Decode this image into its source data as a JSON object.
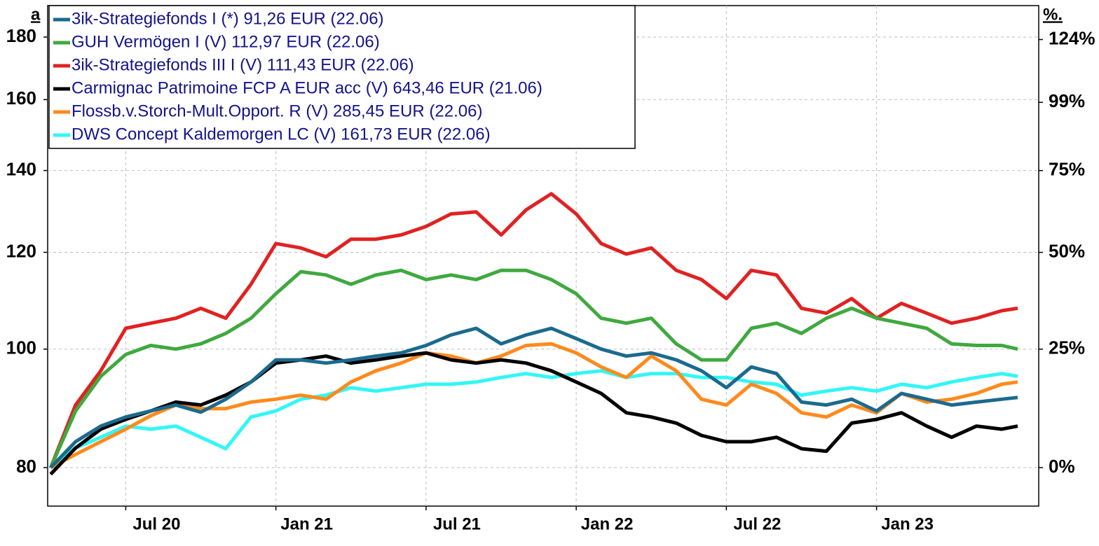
{
  "chart_data": {
    "type": "line",
    "left_corner_label": "a",
    "right_corner_label": "%.",
    "x": [
      2020.25,
      2020.333,
      2020.417,
      2020.5,
      2020.583,
      2020.667,
      2020.75,
      2020.833,
      2020.917,
      2021.0,
      2021.083,
      2021.167,
      2021.25,
      2021.333,
      2021.417,
      2021.5,
      2021.583,
      2021.667,
      2021.75,
      2021.833,
      2021.917,
      2022.0,
      2022.083,
      2022.167,
      2022.25,
      2022.333,
      2022.417,
      2022.5,
      2022.583,
      2022.667,
      2022.75,
      2022.833,
      2022.917,
      2023.0,
      2023.083,
      2023.167,
      2023.25,
      2023.333,
      2023.417,
      2023.47
    ],
    "xlim": [
      2020.24,
      2023.54
    ],
    "xticks": [
      {
        "value": 2020.5,
        "label": "Jul 20"
      },
      {
        "value": 2021.0,
        "label": "Jan 21"
      },
      {
        "value": 2021.5,
        "label": "Jul 21"
      },
      {
        "value": 2022.0,
        "label": "Jan 22"
      },
      {
        "value": 2022.5,
        "label": "Jul 22"
      },
      {
        "value": 2023.0,
        "label": "Jan 23"
      }
    ],
    "ylim": [
      74.4,
      191
    ],
    "yticks": [
      80,
      100,
      120,
      140,
      160,
      180
    ],
    "y_scale": "log",
    "y2lim": [
      -7,
      138.8
    ],
    "y2_scale": "log",
    "y2ticks": [
      {
        "value": 0,
        "label": "0%"
      },
      {
        "value": 25,
        "label": "25%"
      },
      {
        "value": 50,
        "label": "50%"
      },
      {
        "value": 75,
        "label": "75%"
      },
      {
        "value": 99,
        "label": "99%"
      },
      {
        "value": 124,
        "label": "124%"
      }
    ],
    "grid": true,
    "legend": "top-left",
    "series": [
      {
        "name": "3ik-Strategiefonds I (*) 91,26 EUR (22.06)",
        "color": "#1b6a8e",
        "values": [
          80,
          84,
          86.5,
          88,
          89,
          90,
          88.8,
          91,
          94,
          98,
          98,
          97.4,
          98,
          98.7,
          99.3,
          100.7,
          102.7,
          104,
          101,
          102.7,
          104,
          102,
          100,
          98.7,
          99.3,
          98,
          96,
          93,
          96.7,
          95.5,
          90.5,
          90,
          91,
          89,
          92,
          91,
          90,
          90.5,
          91,
          91.3
        ]
      },
      {
        "name": "GUH Vermögen I (V) 112,97 EUR (22.06)",
        "color": "#3fa93f",
        "values": [
          80,
          89,
          95,
          99,
          100.7,
          100,
          101,
          103,
          106,
          111,
          115.7,
          115,
          113,
          115,
          116,
          114,
          115,
          114,
          116,
          116,
          114,
          111,
          106,
          105,
          106,
          101,
          98,
          98,
          104,
          105,
          103,
          106,
          108,
          106,
          105,
          104,
          101,
          100.7,
          100.7,
          100
        ]
      },
      {
        "name": "3ik-Strategiefonds III I (V) 111,43 EUR (22.06)",
        "color": "#e02222",
        "values": [
          80,
          90,
          96,
          104,
          105,
          106,
          108,
          106,
          113,
          122,
          121,
          119,
          123,
          123,
          124,
          126,
          129,
          129.5,
          124,
          130,
          134,
          129,
          122,
          119.6,
          121,
          116,
          114,
          110,
          116,
          115,
          108,
          107,
          110,
          106,
          109,
          107,
          105,
          106,
          107.5,
          108
        ]
      },
      {
        "name": "Carmignac Patrimoine FCP A EUR acc (V) 643,46 EUR (21.06)",
        "color": "#000000",
        "values": [
          79,
          83,
          86,
          87.6,
          89,
          90.5,
          90,
          91.7,
          94,
          97.4,
          98,
          98.7,
          97.4,
          98,
          98.7,
          99.3,
          98,
          97.4,
          98,
          97.4,
          96,
          94,
          92,
          88.7,
          88,
          87,
          85,
          84,
          84,
          84.7,
          82.9,
          82.5,
          87,
          87.6,
          88.7,
          86.5,
          84.7,
          86.5,
          86,
          86.5
        ]
      },
      {
        "name": "Flossb.v.Storch-Mult.Opport. R (V) 285,45 EUR (22.06)",
        "color": "#ff8a1c",
        "values": [
          80,
          82,
          84,
          86,
          88.2,
          90,
          89.4,
          89.4,
          90.5,
          91,
          91.7,
          91,
          94,
          96,
          97.4,
          99.3,
          98.7,
          97.4,
          98.7,
          100.7,
          101,
          99.3,
          96.7,
          94.8,
          98.7,
          96,
          91,
          90,
          93.6,
          92,
          88.7,
          88,
          90,
          88.7,
          92,
          90.5,
          91,
          92,
          93.6,
          94
        ]
      },
      {
        "name": "DWS Concept Kaldemorgen LC (V) 161,73 EUR (22.06)",
        "color": "#33f6f6",
        "values": [
          80,
          83,
          84.7,
          86.5,
          86,
          86.5,
          84.7,
          82.9,
          88,
          89,
          91,
          91.7,
          93,
          92.4,
          93,
          93.6,
          93.6,
          94,
          94.8,
          95.5,
          94.8,
          95.5,
          96,
          94.8,
          95.5,
          95.5,
          94.8,
          94.8,
          94,
          93.6,
          91.7,
          92.4,
          93,
          92.4,
          93.6,
          93,
          94,
          94.8,
          95.5,
          95
        ]
      }
    ]
  }
}
